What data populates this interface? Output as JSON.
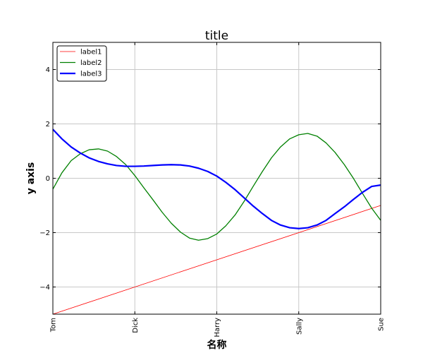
{
  "chart_data": {
    "type": "line",
    "title": "title",
    "xlabel": "名称",
    "ylabel": "y axis",
    "categories": [
      "Tom",
      "Dick",
      "Harry",
      "Sally",
      "Sue"
    ],
    "xlim": [
      0,
      12
    ],
    "ylim": [
      -5,
      5
    ],
    "yticks": [
      -4,
      -2,
      0,
      2,
      4
    ],
    "grid": true,
    "legend_position": "top-left",
    "series": [
      {
        "name": "label1",
        "color": "#ff0000",
        "x": [
          0,
          12
        ],
        "y": [
          -5,
          -1
        ]
      },
      {
        "name": "label2",
        "color": "#008000",
        "x": [
          0,
          0.33,
          0.67,
          1,
          1.33,
          1.67,
          2,
          2.33,
          2.67,
          3,
          3.33,
          3.67,
          4,
          4.33,
          4.67,
          5,
          5.33,
          5.67,
          6,
          6.33,
          6.67,
          7,
          7.33,
          7.67,
          8,
          8.33,
          8.67,
          9,
          9.33,
          9.67,
          10,
          10.33,
          10.67,
          11,
          11.33,
          11.67,
          12
        ],
        "y": [
          -0.4,
          0.2,
          0.65,
          0.9,
          1.05,
          1.08,
          1.0,
          0.8,
          0.5,
          0.1,
          -0.35,
          -0.8,
          -1.25,
          -1.65,
          -1.98,
          -2.2,
          -2.28,
          -2.22,
          -2.05,
          -1.75,
          -1.35,
          -0.85,
          -0.3,
          0.25,
          0.75,
          1.15,
          1.45,
          1.6,
          1.65,
          1.55,
          1.3,
          0.95,
          0.5,
          0.0,
          -0.55,
          -1.1,
          -1.55
        ]
      },
      {
        "name": "label3",
        "color": "#0000ff",
        "x": [
          0,
          0.33,
          0.67,
          1,
          1.33,
          1.67,
          2,
          2.33,
          2.67,
          3,
          3.33,
          3.67,
          4,
          4.33,
          4.67,
          5,
          5.33,
          5.67,
          6,
          6.33,
          6.67,
          7,
          7.33,
          7.67,
          8,
          8.33,
          8.67,
          9,
          9.33,
          9.67,
          10,
          10.33,
          10.67,
          11,
          11.33,
          11.67,
          12
        ],
        "y": [
          1.8,
          1.45,
          1.15,
          0.93,
          0.75,
          0.62,
          0.53,
          0.47,
          0.44,
          0.44,
          0.45,
          0.47,
          0.49,
          0.5,
          0.49,
          0.45,
          0.37,
          0.25,
          0.08,
          -0.15,
          -0.42,
          -0.72,
          -1.02,
          -1.3,
          -1.55,
          -1.72,
          -1.82,
          -1.85,
          -1.82,
          -1.72,
          -1.55,
          -1.3,
          -1.05,
          -0.78,
          -0.52,
          -0.3,
          -0.25
        ]
      }
    ]
  }
}
